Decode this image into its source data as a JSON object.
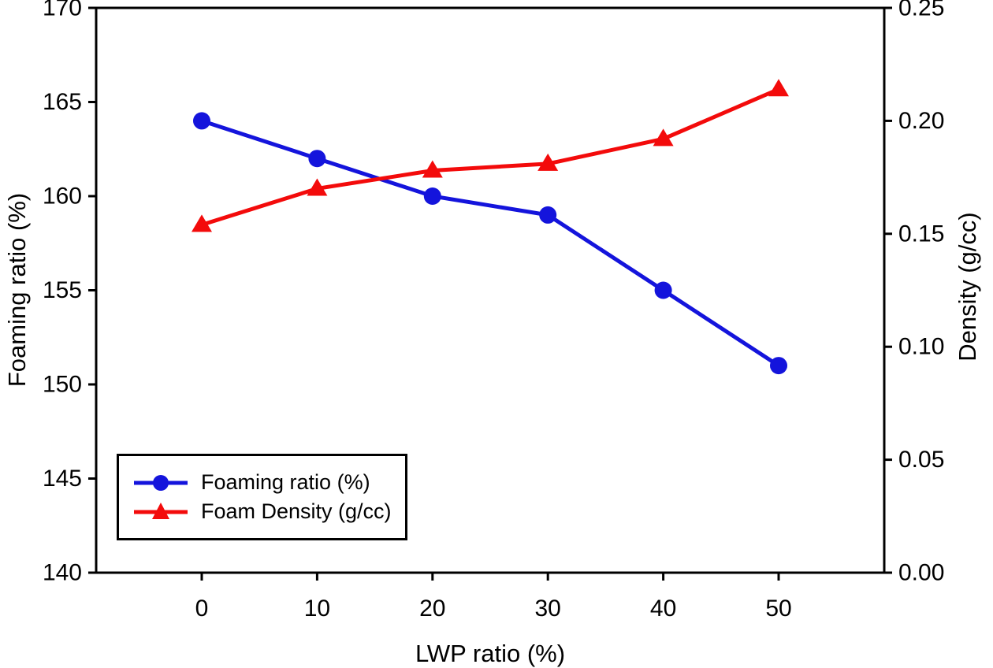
{
  "chart_data": {
    "type": "line",
    "x": [
      0,
      10,
      20,
      30,
      40,
      50
    ],
    "x_tick_labels": [
      "0",
      "10",
      "20",
      "30",
      "40",
      "50"
    ],
    "xlabel": "LWP ratio (%)",
    "left_axis": {
      "label": "Foaming ratio (%)",
      "range": [
        140,
        170
      ],
      "ticks": [
        140,
        145,
        150,
        155,
        160,
        165,
        170
      ],
      "tick_labels": [
        "140",
        "145",
        "150",
        "155",
        "160",
        "165",
        "170"
      ]
    },
    "right_axis": {
      "label": "Density (g/cc)",
      "range": [
        0.0,
        0.25
      ],
      "ticks": [
        0.0,
        0.05,
        0.1,
        0.15,
        0.2,
        0.25
      ],
      "tick_labels": [
        "0.00",
        "0.05",
        "0.10",
        "0.15",
        "0.20",
        "0.25"
      ]
    },
    "grid": false,
    "frame_color": "#000000",
    "series": [
      {
        "name": "Foaming ratio (%)",
        "axis": "left",
        "color": "#1414dc",
        "marker": "circle",
        "values": [
          164,
          162,
          160,
          159,
          155,
          151
        ]
      },
      {
        "name": "Foam Density (g/cc)",
        "axis": "right",
        "color": "#f30b0b",
        "marker": "triangle",
        "values": [
          0.154,
          0.17,
          0.178,
          0.181,
          0.192,
          0.214
        ]
      }
    ],
    "legend": {
      "position": "bottom-left",
      "items": [
        "Foaming ratio (%)",
        "Foam Density (g/cc)"
      ]
    }
  }
}
